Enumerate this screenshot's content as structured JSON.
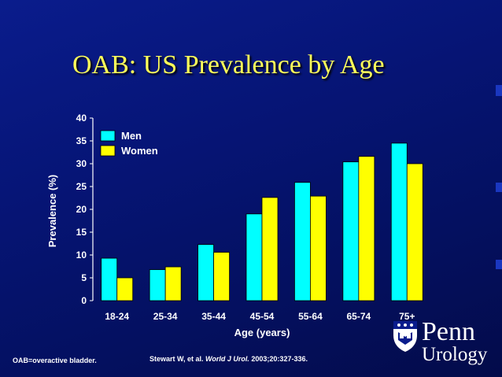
{
  "slide": {
    "title": "OAB: US Prevalence by Age",
    "footnote": "OAB=overactive bladder.",
    "citation": {
      "authors": "Stewart W, et al.",
      "journal": "World J Urol.",
      "details": "2003;20:327-336."
    },
    "logo": {
      "line1": "Penn",
      "line2": "Urology"
    },
    "colors": {
      "title": "#ffff5a",
      "men": "#00ffff",
      "women": "#ffff00",
      "text": "#ffffff"
    }
  },
  "chart_data": {
    "type": "bar",
    "title": "OAB: US Prevalence by Age",
    "xlabel": "Age (years)",
    "ylabel": "Prevalence (%)",
    "ylim": [
      0,
      40
    ],
    "yticks": [
      0,
      5,
      10,
      15,
      20,
      25,
      30,
      35,
      40
    ],
    "categories": [
      "18-24",
      "25-34",
      "35-44",
      "45-54",
      "55-64",
      "65-74",
      "75+"
    ],
    "series": [
      {
        "name": "Men",
        "color": "#00ffff",
        "values": [
          9.3,
          6.8,
          12.3,
          19,
          25.9,
          30.4,
          34.5
        ]
      },
      {
        "name": "Women",
        "color": "#ffff00",
        "values": [
          5,
          7.4,
          10.6,
          22.6,
          22.9,
          31.6,
          30
        ]
      }
    ],
    "legend": "top-left",
    "grid": false
  }
}
